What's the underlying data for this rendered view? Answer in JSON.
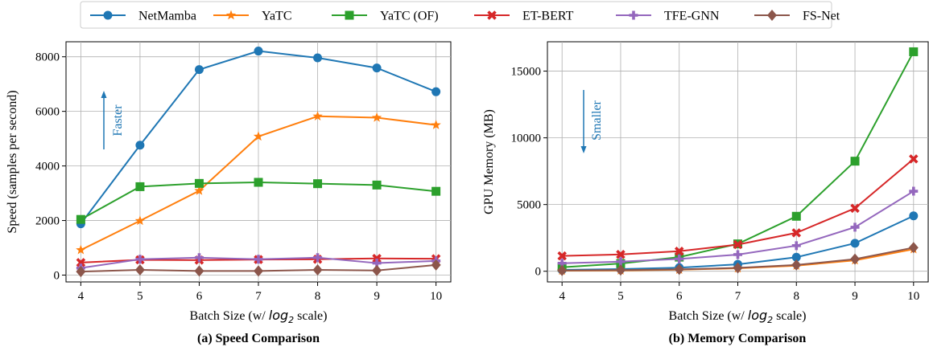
{
  "legend": {
    "entries": [
      {
        "name": "NetMamba",
        "color": "#1f77b4",
        "marker": "circle"
      },
      {
        "name": "YaTC",
        "color": "#ff7f0e",
        "marker": "star"
      },
      {
        "name": "YaTC (OF)",
        "color": "#2ca02c",
        "marker": "square"
      },
      {
        "name": "ET-BERT",
        "color": "#d62728",
        "marker": "x"
      },
      {
        "name": "TFE-GNN",
        "color": "#9467bd",
        "marker": "plus"
      },
      {
        "name": "FS-Net",
        "color": "#8c564b",
        "marker": "diamond"
      }
    ]
  },
  "chart_data": [
    {
      "type": "line",
      "caption": "(a) Speed Comparison",
      "xlabel": "Batch Size (w/ log2 scale)",
      "ylabel": "Speed (samples per second)",
      "annotation": "Faster",
      "x": [
        4,
        5,
        6,
        7,
        8,
        9,
        10
      ],
      "xlim": [
        3.75,
        10.25
      ],
      "ylim": [
        -250,
        8550
      ],
      "yticks": [
        0,
        2000,
        4000,
        6000,
        8000
      ],
      "grid": true,
      "series": [
        {
          "name": "NetMamba",
          "values": [
            1880,
            4760,
            7530,
            8210,
            7960,
            7590,
            6720
          ]
        },
        {
          "name": "YaTC",
          "values": [
            920,
            1990,
            3090,
            5080,
            5820,
            5770,
            5500
          ]
        },
        {
          "name": "YaTC (OF)",
          "values": [
            2040,
            3240,
            3360,
            3400,
            3350,
            3300,
            3070
          ]
        },
        {
          "name": "ET-BERT",
          "values": [
            460,
            560,
            550,
            570,
            580,
            610,
            600
          ]
        },
        {
          "name": "TFE-GNN",
          "values": [
            260,
            580,
            640,
            580,
            640,
            440,
            520
          ]
        },
        {
          "name": "FS-Net",
          "values": [
            130,
            190,
            150,
            150,
            190,
            170,
            370
          ]
        }
      ]
    },
    {
      "type": "line",
      "caption": "(b) Memory Comparison",
      "xlabel": "Batch Size (w/ log2 scale)",
      "ylabel": "GPU Memory (MB)",
      "annotation": "Smaller",
      "x": [
        4,
        5,
        6,
        7,
        8,
        9,
        10
      ],
      "xlim": [
        3.75,
        10.25
      ],
      "ylim": [
        -800,
        17200
      ],
      "yticks": [
        0,
        5000,
        10000,
        15000
      ],
      "grid": true,
      "series": [
        {
          "name": "NetMamba",
          "values": [
            100,
            160,
            270,
            520,
            1050,
            2100,
            4150
          ]
        },
        {
          "name": "YaTC",
          "values": [
            40,
            60,
            120,
            220,
            420,
            820,
            1650
          ]
        },
        {
          "name": "YaTC (OF)",
          "values": [
            300,
            580,
            1060,
            2050,
            4120,
            8250,
            16450
          ]
        },
        {
          "name": "ET-BERT",
          "values": [
            1150,
            1260,
            1500,
            2000,
            2880,
            4720,
            8420
          ]
        },
        {
          "name": "TFE-GNN",
          "values": [
            600,
            720,
            920,
            1250,
            1920,
            3300,
            6000
          ]
        },
        {
          "name": "FS-Net",
          "values": [
            60,
            90,
            140,
            250,
            470,
            910,
            1770
          ]
        }
      ]
    }
  ]
}
